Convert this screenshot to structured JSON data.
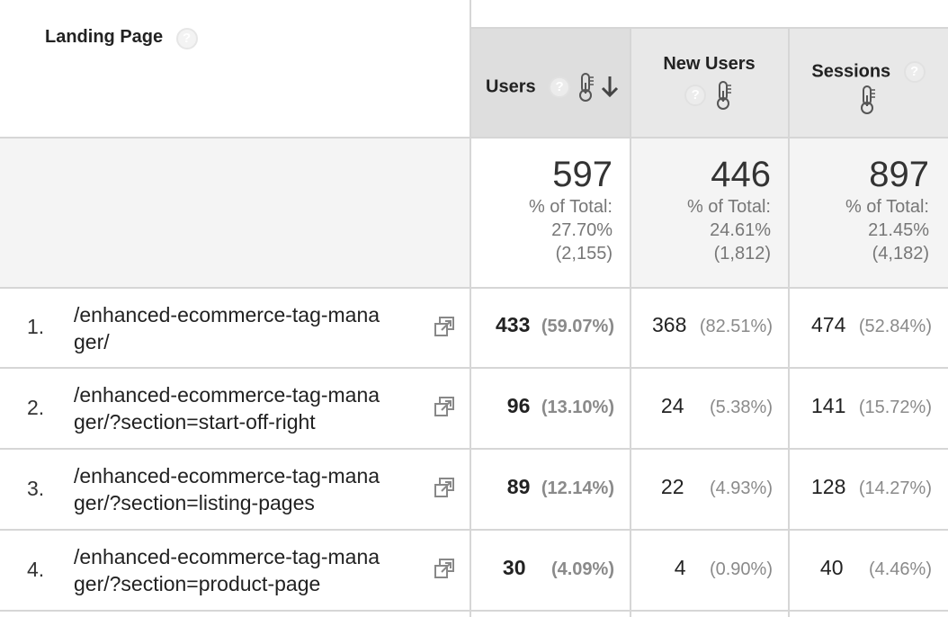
{
  "header": {
    "landing_page_label": "Landing Page",
    "help_glyph": "?",
    "columns": [
      {
        "label": "Users",
        "sorted": true,
        "sort_icon": "arrow-down-icon"
      },
      {
        "label": "New Users",
        "sorted": false
      },
      {
        "label": "Sessions",
        "sorted": false
      }
    ]
  },
  "totals": [
    {
      "value": "597",
      "pct_label": "% of Total:",
      "pct": "27.70%",
      "of": "(2,155)"
    },
    {
      "value": "446",
      "pct_label": "% of Total:",
      "pct": "24.61%",
      "of": "(1,812)"
    },
    {
      "value": "897",
      "pct_label": "% of Total:",
      "pct": "21.45%",
      "of": "(4,182)"
    }
  ],
  "rows": [
    {
      "num": "1.",
      "page_line1": "/enhanced-ecommerce-tag-mana",
      "page_line2": "ger/",
      "users": "433",
      "users_pct": "(59.07%)",
      "new_users": "368",
      "new_users_pct": "(82.51%)",
      "sessions": "474",
      "sessions_pct": "(52.84%)"
    },
    {
      "num": "2.",
      "page_line1": "/enhanced-ecommerce-tag-mana",
      "page_line2": "ger/?section=start-off-right",
      "users": "96",
      "users_pct": "(13.10%)",
      "new_users": "24",
      "new_users_pct": "(5.38%)",
      "sessions": "141",
      "sessions_pct": "(15.72%)"
    },
    {
      "num": "3.",
      "page_line1": "/enhanced-ecommerce-tag-mana",
      "page_line2": "ger/?section=listing-pages",
      "users": "89",
      "users_pct": "(12.14%)",
      "new_users": "22",
      "new_users_pct": "(4.93%)",
      "sessions": "128",
      "sessions_pct": "(14.27%)"
    },
    {
      "num": "4.",
      "page_line1": "/enhanced-ecommerce-tag-mana",
      "page_line2": "ger/?section=product-page",
      "users": "30",
      "users_pct": "(4.09%)",
      "new_users": "4",
      "new_users_pct": "(0.90%)",
      "sessions": "40",
      "sessions_pct": "(4.46%)"
    }
  ],
  "icons": {
    "help": "help-icon",
    "heatmap": "thermometer-icon",
    "external_link": "external-link-icon"
  },
  "colors": {
    "header_bg": "#e8e8e8",
    "sorted_header_bg": "#dedede",
    "grid_line": "#d6d6d6",
    "total_row_bg": "#f4f4f4"
  }
}
